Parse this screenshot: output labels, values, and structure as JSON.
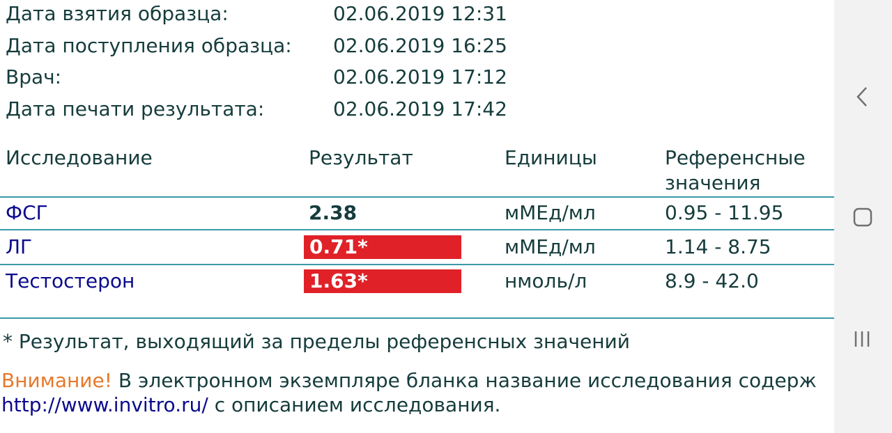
{
  "meta": [
    {
      "label": "Дата взятия образца:",
      "value": "02.06.2019 12:31"
    },
    {
      "label": "Дата поступления образца:",
      "value": "02.06.2019 16:25"
    },
    {
      "label": "Врач:",
      "value": "02.06.2019 17:12"
    },
    {
      "label": "Дата печати результата:",
      "value": "02.06.2019 17:42"
    }
  ],
  "table": {
    "headers": {
      "study": "Исследование",
      "result": "Результат",
      "units": "Единицы",
      "ref_line1": "Референсные",
      "ref_line2": "значения"
    },
    "rows": [
      {
        "name": "ФСГ",
        "result": "2.38",
        "units": "мМЕд/мл",
        "ref": "0.95 - 11.95",
        "flagged": false
      },
      {
        "name": "ЛГ",
        "result": "0.71*",
        "units": "мМЕд/мл",
        "ref": "1.14 - 8.75",
        "flagged": true
      },
      {
        "name": "Тестостерон",
        "result": "1.63*",
        "units": "нмоль/л",
        "ref": "8.9 - 42.0",
        "flagged": true
      }
    ]
  },
  "footnote": "* Результат, выходящий за пределы референсных значений",
  "notice": {
    "warning": "Внимание!",
    "text": " В электронном экземпляре бланка название исследования содерж",
    "link": "http://www.invitro.ru/",
    "text2": " с описанием исследования."
  },
  "colors": {
    "flag": "#e02128",
    "divider": "#3a9aa6",
    "warning": "#e8782a",
    "link": "#0a0a8c"
  },
  "navbar": {
    "icons": [
      "back-icon",
      "home-icon",
      "recents-icon"
    ]
  }
}
